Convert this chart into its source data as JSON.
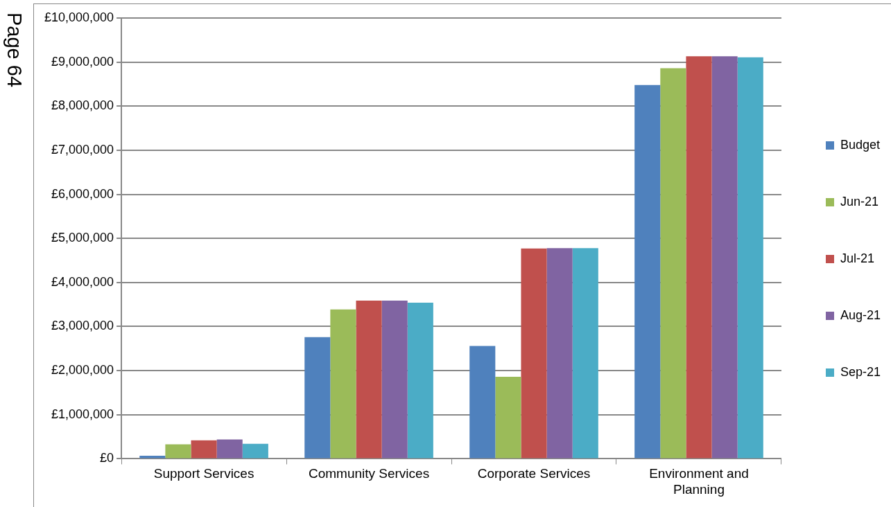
{
  "chart_data": {
    "type": "bar",
    "categories": [
      "Support Services",
      "Community Services",
      "Corporate Services",
      "Environment and Planning"
    ],
    "series": [
      {
        "name": "Budget",
        "color": "#4f81bd",
        "values": [
          70000,
          2760000,
          2560000,
          8480000
        ]
      },
      {
        "name": "Jun-21",
        "color": "#9bbb59",
        "values": [
          330000,
          3390000,
          1860000,
          8860000
        ]
      },
      {
        "name": "Jul-21",
        "color": "#c0504d",
        "values": [
          420000,
          3590000,
          4770000,
          9130000
        ]
      },
      {
        "name": "Aug-21",
        "color": "#8064a2",
        "values": [
          440000,
          3590000,
          4780000,
          9130000
        ]
      },
      {
        "name": "Sep-21",
        "color": "#4bacc6",
        "values": [
          340000,
          3540000,
          4780000,
          9110000
        ]
      }
    ],
    "ylim": [
      0,
      10000000
    ],
    "yticks": [
      {
        "value": 0,
        "label": "£0"
      },
      {
        "value": 1000000,
        "label": "£1,000,000"
      },
      {
        "value": 2000000,
        "label": "£2,000,000"
      },
      {
        "value": 3000000,
        "label": "£3,000,000"
      },
      {
        "value": 4000000,
        "label": "£4,000,000"
      },
      {
        "value": 5000000,
        "label": "£5,000,000"
      },
      {
        "value": 6000000,
        "label": "£6,000,000"
      },
      {
        "value": 7000000,
        "label": "£7,000,000"
      },
      {
        "value": 8000000,
        "label": "£8,000,000"
      },
      {
        "value": 9000000,
        "label": "£9,000,000"
      },
      {
        "value": 10000000,
        "label": "£10,000,000"
      }
    ],
    "grid": "y",
    "legend": "right",
    "annotations": [
      "Page 64"
    ]
  }
}
